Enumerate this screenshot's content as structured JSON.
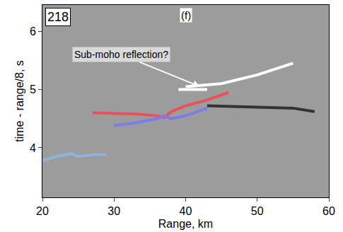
{
  "chart_data": {
    "type": "line",
    "panel_label": "218",
    "subtitle": "(f)",
    "x_label": "Range, km",
    "y_label": "time - range/8, s",
    "annotation": {
      "text": "Sub-moho reflection?",
      "x": 31,
      "y": 5.6,
      "arrow_x": 42,
      "arrow_y": 5.05
    },
    "xlim": [
      20,
      60
    ],
    "xticks": [
      20,
      30,
      40,
      50,
      60
    ],
    "ylim": [
      3.15,
      6.45
    ],
    "yticks": [
      4,
      5,
      6
    ],
    "grid": false,
    "series": [
      {
        "color": "#8fb3d9",
        "x": [
          20,
          22,
          24,
          25,
          27,
          29
        ],
        "values": [
          3.78,
          3.85,
          3.9,
          3.85,
          3.88,
          3.88
        ]
      },
      {
        "color": "#e8525a",
        "x": [
          27,
          33,
          36,
          37,
          38,
          40,
          43,
          46
        ],
        "values": [
          4.6,
          4.58,
          4.55,
          4.52,
          4.62,
          4.72,
          4.82,
          4.95
        ]
      },
      {
        "color": "#7b7bea",
        "x": [
          30,
          33,
          36,
          37,
          38,
          40,
          43
        ],
        "values": [
          4.38,
          4.43,
          4.5,
          4.55,
          4.5,
          4.55,
          4.68
        ]
      },
      {
        "color": "#333333",
        "x": [
          43,
          50,
          55,
          58
        ],
        "values": [
          4.72,
          4.7,
          4.68,
          4.62
        ]
      },
      {
        "color": "#ffffff",
        "x": [
          40,
          45,
          50,
          55
        ],
        "values": [
          5.05,
          5.1,
          5.25,
          5.45
        ]
      },
      {
        "color": "#ffffff",
        "x": [
          39,
          43
        ],
        "values": [
          5.0,
          5.0
        ]
      }
    ]
  }
}
